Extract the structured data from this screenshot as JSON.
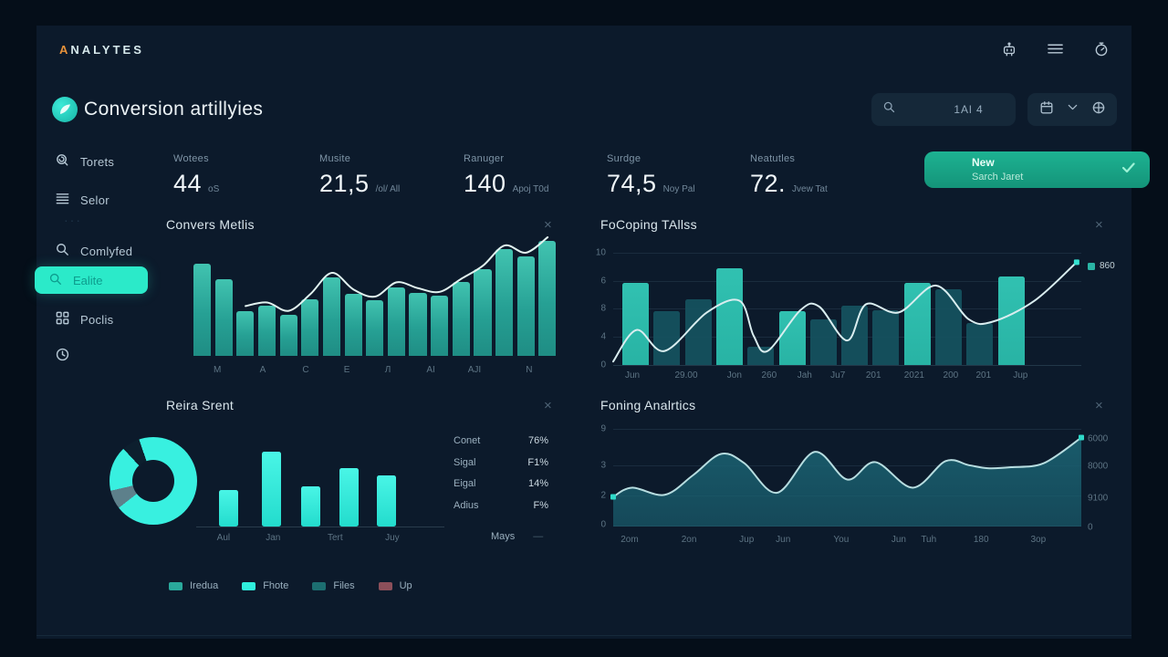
{
  "header": {
    "logo_first": "A",
    "logo_rest": "NALYTES",
    "icons": [
      "robot-icon",
      "menu-icon",
      "stopwatch-icon"
    ]
  },
  "page": {
    "title": "Conversion artillyies"
  },
  "search": {
    "value": "1Al 4",
    "icon": "search-icon"
  },
  "toolbar": {
    "icons": [
      "calendar-icon",
      "chevron-down-icon",
      "globe-icon"
    ]
  },
  "sidebar": {
    "divider": "···",
    "items": [
      {
        "label": "Torets",
        "icon": "torets-icon",
        "active": false
      },
      {
        "label": "Selor",
        "icon": "selor-icon",
        "active": false
      },
      {
        "label": "Comlyfed",
        "icon": "search-icon",
        "active": false
      },
      {
        "label": "Ealite",
        "icon": "search-icon",
        "active": true
      },
      {
        "label": "Poclis",
        "icon": "grid-icon",
        "active": false
      }
    ],
    "footer_icon": "clock-icon"
  },
  "kpis": [
    {
      "label": "Wotees",
      "value": "44",
      "suffix": "oS"
    },
    {
      "label": "Musite",
      "value": "21,5",
      "suffix": "/ol/ All"
    },
    {
      "label": "Ranuger",
      "value": "140",
      "suffix": "Apoj T0d"
    },
    {
      "label": "Surdge",
      "value": "74,5",
      "suffix": "Noy Pal"
    },
    {
      "label": "Neatutles",
      "value": "72.",
      "suffix": "Jvew Tat"
    }
  ],
  "new_button": {
    "title": "New",
    "subtitle": "Sarch Jaret",
    "check": "✓",
    "color": "#17a68a"
  },
  "panels": [
    {
      "title": "Convers Metlis",
      "close": "×"
    },
    {
      "title": "FoCoping TAllss",
      "close": "×"
    },
    {
      "title": "Reira Srent",
      "close": "×"
    },
    {
      "title": "Foning Analrtics",
      "close": "×"
    }
  ],
  "stats": {
    "rows": [
      {
        "label": "Conet",
        "value": "76%"
      },
      {
        "label": "Sigal",
        "value": "F1%"
      },
      {
        "label": "Eigal",
        "value": "14%"
      },
      {
        "label": "Adius",
        "value": "F%"
      }
    ],
    "footer": "Mays",
    "footer_dash": "—"
  },
  "legend": [
    {
      "label": "Iredua",
      "color": "#2aa99c"
    },
    {
      "label": "Fhote",
      "color": "#2ff0dd"
    },
    {
      "label": "Files",
      "color": "#1c6e70"
    },
    {
      "label": "Up",
      "color": "#8c4f5a"
    }
  ],
  "chart_data": [
    {
      "type": "bar",
      "title": "Convers Metlis",
      "categories": [
        "M",
        "A",
        "C",
        "E",
        "Л",
        "AI",
        "AJI",
        "N"
      ],
      "category_pos": [
        7,
        19.4,
        31.1,
        42.3,
        53.5,
        65.2,
        77.1,
        92
      ],
      "values": [
        78,
        65,
        38,
        42,
        35,
        48,
        66,
        52,
        47,
        58,
        53,
        51,
        62,
        73,
        90,
        84,
        97
      ],
      "line_overlay": {
        "start_index": 2,
        "values": [
          42,
          45,
          38,
          52,
          70,
          56,
          50,
          62,
          57,
          54,
          65,
          76,
          93,
          87,
          100
        ]
      },
      "ylim": [
        0,
        100
      ],
      "bar_color": "#2cb2a3",
      "line_color": "#e2f3f0",
      "grid": false
    },
    {
      "type": "bar+line",
      "title": "FoCoping TAllss",
      "y_ticks": [
        "10",
        "6",
        "8",
        "4",
        "0"
      ],
      "categories": [
        "Jun",
        "29.00",
        "Jon",
        "260",
        "Jah",
        "Ju7",
        "201",
        "2021",
        "200",
        "201",
        "Jup"
      ],
      "category_pos": [
        4.1,
        15.6,
        25.9,
        33.3,
        40.9,
        48,
        55.6,
        64.3,
        72.1,
        79.1,
        87
      ],
      "bars": [
        {
          "v": 7.0,
          "tone": "bright"
        },
        {
          "v": 4.6,
          "tone": "dark"
        },
        {
          "v": 5.6,
          "tone": "dark"
        },
        {
          "v": 8.3,
          "tone": "bright"
        },
        {
          "v": 1.6,
          "tone": "dark"
        },
        {
          "v": 4.6,
          "tone": "bright"
        },
        {
          "v": 3.9,
          "tone": "dark"
        },
        {
          "v": 5.1,
          "tone": "dark"
        },
        {
          "v": 4.7,
          "tone": "dark"
        },
        {
          "v": 7.0,
          "tone": "bright"
        },
        {
          "v": 6.5,
          "tone": "dark"
        },
        {
          "v": 3.6,
          "tone": "dark"
        },
        {
          "v": 7.6,
          "tone": "bright"
        }
      ],
      "line_points": [
        [
          0,
          0.3
        ],
        [
          5,
          3.0
        ],
        [
          11,
          1.2
        ],
        [
          20,
          4.5
        ],
        [
          27,
          5.5
        ],
        [
          30,
          2.5
        ],
        [
          33,
          1.2
        ],
        [
          40,
          4.7
        ],
        [
          44,
          5.0
        ],
        [
          50,
          2.1
        ],
        [
          54,
          5.2
        ],
        [
          61,
          4.5
        ],
        [
          69,
          6.8
        ],
        [
          76,
          3.9
        ],
        [
          81,
          3.7
        ],
        [
          90,
          5.5
        ],
        [
          99,
          8.8
        ]
      ],
      "end_label": "860",
      "ylim": [
        0,
        10
      ],
      "bright_color": "#28b3a4",
      "dark_color": "#16525f",
      "line_color": "#d9edef",
      "grid": true,
      "legend_position": "top-right"
    },
    {
      "type": "donut+bar",
      "title": "Reira Srent",
      "donut_segments": [
        [
          0,
          232,
          "#38f0e0"
        ],
        [
          232,
          257,
          "#5d808b"
        ],
        [
          257,
          317,
          "#38f0e0"
        ],
        [
          317,
          341,
          "#0d1f2e"
        ],
        [
          341,
          360,
          "#38f0e0"
        ]
      ],
      "bar_categories": [
        "Aul",
        "Jan",
        "Tert",
        "Juy"
      ],
      "bar_label_pos": [
        11,
        31,
        56,
        79
      ],
      "bar_values": [
        46.5,
        95.3,
        51.2,
        74.4,
        65.1
      ],
      "bar_color": "#35f0e0",
      "ylim": [
        0,
        100
      ]
    },
    {
      "type": "area",
      "title": "Foning Analrtics",
      "left_ticks": [
        "9",
        "3",
        "2",
        "0"
      ],
      "right_ticks": [
        "6000",
        "8000",
        "9100",
        "0"
      ],
      "categories": [
        "2om",
        "2on",
        "Jup",
        "Jun",
        "You",
        "Jun",
        "Tuh",
        "180",
        "3op"
      ],
      "category_pos": [
        3.5,
        16.2,
        28.5,
        36.3,
        48.7,
        61,
        67.4,
        78.6,
        90.8
      ],
      "points": [
        [
          0,
          29
        ],
        [
          4,
          38
        ],
        [
          11,
          31
        ],
        [
          17,
          50
        ],
        [
          23,
          71
        ],
        [
          28,
          62
        ],
        [
          35,
          33
        ],
        [
          43,
          73
        ],
        [
          50,
          46
        ],
        [
          56,
          63
        ],
        [
          64,
          38
        ],
        [
          71,
          64
        ],
        [
          76,
          60
        ],
        [
          80,
          57
        ],
        [
          85,
          58
        ],
        [
          92,
          62
        ],
        [
          100,
          87
        ]
      ],
      "area_color": "#1a6272",
      "line_color": "#b7dde0",
      "marker_color": "#2fd9c9",
      "grid": true
    }
  ]
}
